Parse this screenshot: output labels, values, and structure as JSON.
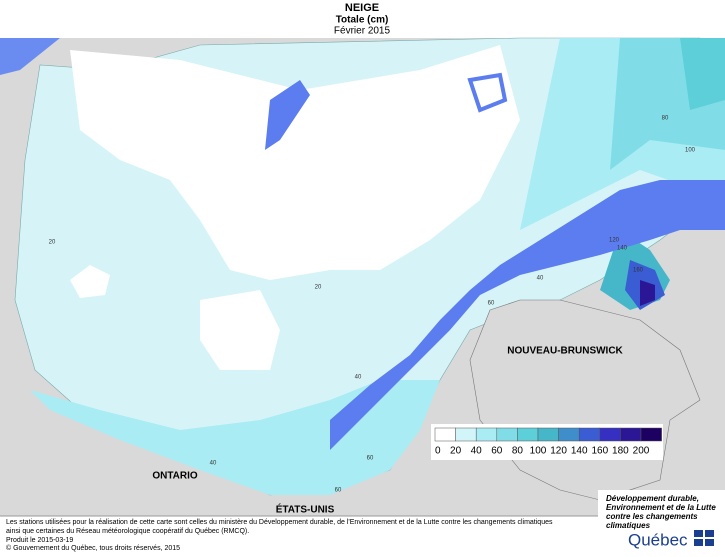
{
  "header": {
    "title": "NEIGE",
    "subtitle": "Totale (cm)",
    "period": "Février 2015"
  },
  "legend": {
    "ticks": [
      0,
      20,
      40,
      60,
      80,
      100,
      120,
      140,
      160,
      180,
      200
    ],
    "colors": [
      "#ffffff",
      "#d2f5fa",
      "#a9ecf4",
      "#80dde8",
      "#5ccfd9",
      "#46b7c9",
      "#3f8ecb",
      "#3a5dd3",
      "#3530c2",
      "#2b1795",
      "#1c0062"
    ]
  },
  "map": {
    "regions": [
      "ONTARIO",
      "ÉTATS-UNIS",
      "NOUVEAU-BRUNSWICK"
    ],
    "contour_labels": [
      20,
      20,
      40,
      40,
      40,
      60,
      60,
      60,
      80,
      100,
      120,
      140,
      160
    ]
  },
  "footer": {
    "notes": [
      "Les stations utilisées pour la réalisation de cette carte sont celles du ministère du Développement durable, de l'Environnement et de la Lutte contre les changements climatiques",
      "ainsi que certaines du Réseau météorologique coopératif du Québec (RMCQ).",
      "Produit le 2015-03-19",
      "© Gouvernement du Québec, tous droits réservés, 2015"
    ]
  },
  "logo": {
    "ministry": [
      "Développement durable,",
      "Environnement et de la Lutte",
      "contre les changements",
      "climatiques"
    ],
    "name": "Québec"
  }
}
